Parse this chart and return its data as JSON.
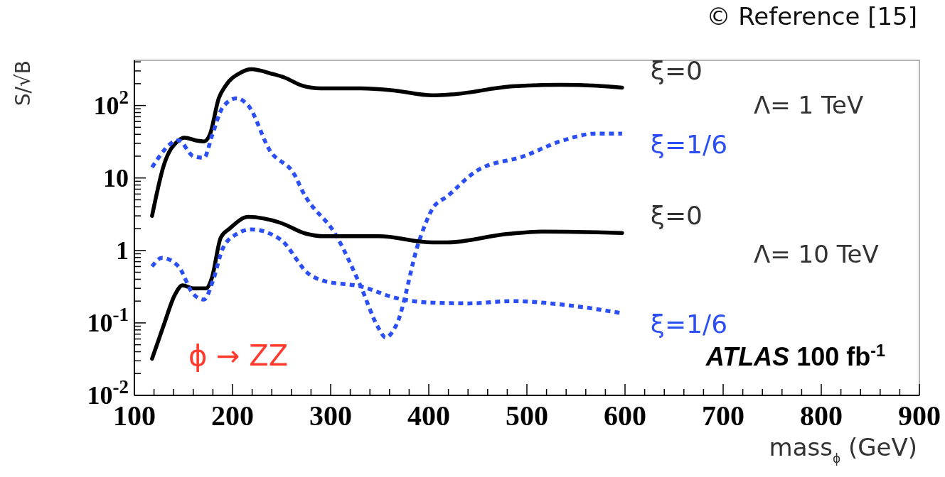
{
  "chart_data": {
    "type": "line",
    "xlabel": "mass$_{ϕ}$ (GeV)",
    "ylabel": "S/√B",
    "log": "y",
    "grid": false,
    "legend": false,
    "marker": "none",
    "xlim": [
      100,
      900
    ],
    "ylim": [
      0.01,
      420
    ],
    "xticks": [
      100,
      {
        "value": 120,
        "label": null
      },
      {
        "value": 140,
        "label": null
      },
      {
        "value": 160,
        "label": null
      },
      {
        "value": 180,
        "label": null
      },
      200,
      {
        "value": 220,
        "label": null
      },
      {
        "value": 240,
        "label": null
      },
      {
        "value": 260,
        "label": null
      },
      {
        "value": 280,
        "label": null
      },
      300,
      {
        "value": 320,
        "label": null
      },
      {
        "value": 340,
        "label": null
      },
      {
        "value": 360,
        "label": null
      },
      {
        "value": 380,
        "label": null
      },
      400,
      {
        "value": 420,
        "label": null
      },
      {
        "value": 440,
        "label": null
      },
      {
        "value": 460,
        "label": null
      },
      {
        "value": 480,
        "label": null
      },
      500,
      {
        "value": 520,
        "label": null
      },
      {
        "value": 540,
        "label": null
      },
      {
        "value": 560,
        "label": null
      },
      {
        "value": 580,
        "label": null
      },
      600,
      {
        "value": 620,
        "label": null
      },
      {
        "value": 640,
        "label": null
      },
      {
        "value": 660,
        "label": null
      },
      {
        "value": 680,
        "label": null
      },
      700,
      {
        "value": 720,
        "label": null
      },
      {
        "value": 740,
        "label": null
      },
      {
        "value": 760,
        "label": null
      },
      {
        "value": 780,
        "label": null
      },
      800,
      {
        "value": 820,
        "label": null
      },
      {
        "value": 840,
        "label": null
      },
      {
        "value": 860,
        "label": null
      },
      {
        "value": 880,
        "label": null
      },
      900
    ],
    "yticks": [
      {
        "value": 0.01,
        "label": "10$^{-2}$"
      },
      {
        "value": 0.02,
        "label": null
      },
      {
        "value": 0.03,
        "label": null
      },
      {
        "value": 0.04,
        "label": null
      },
      {
        "value": 0.05,
        "label": null
      },
      {
        "value": 0.06,
        "label": null
      },
      {
        "value": 0.07,
        "label": null
      },
      {
        "value": 0.08,
        "label": null
      },
      {
        "value": 0.09,
        "label": null
      },
      {
        "value": 0.1,
        "label": "10$^{-1}$"
      },
      {
        "value": 0.2,
        "label": null
      },
      {
        "value": 0.3,
        "label": null
      },
      {
        "value": 0.4,
        "label": null
      },
      {
        "value": 0.5,
        "label": null
      },
      {
        "value": 0.6,
        "label": null
      },
      {
        "value": 0.7,
        "label": null
      },
      {
        "value": 0.8,
        "label": null
      },
      {
        "value": 0.9,
        "label": null
      },
      1,
      {
        "value": 2,
        "label": null
      },
      {
        "value": 3,
        "label": null
      },
      {
        "value": 4,
        "label": null
      },
      {
        "value": 5,
        "label": null
      },
      {
        "value": 6,
        "label": null
      },
      {
        "value": 7,
        "label": null
      },
      {
        "value": 8,
        "label": null
      },
      {
        "value": 9,
        "label": null
      },
      10,
      {
        "value": 20,
        "label": null
      },
      {
        "value": 30,
        "label": null
      },
      {
        "value": 40,
        "label": null
      },
      {
        "value": 50,
        "label": null
      },
      {
        "value": 60,
        "label": null
      },
      {
        "value": 70,
        "label": null
      },
      {
        "value": 80,
        "label": null
      },
      {
        "value": 90,
        "label": null
      },
      {
        "value": 100,
        "label": "10$^{2}$"
      },
      {
        "value": 200,
        "label": null
      },
      {
        "value": 300,
        "label": null
      },
      {
        "value": 400,
        "label": null
      }
    ],
    "series": [
      {
        "name": "ξ=0",
        "color": "#000000",
        "line_style": "solid",
        "x": [
          118,
          130,
          145,
          151,
          164,
          171,
          177,
          186,
          193,
          208,
          219,
          241,
          253,
          271,
          290,
          330,
          363,
          404,
          423,
          486,
          534,
          571,
          597
        ],
        "values": [
          3.0,
          15,
          33,
          36,
          32.6,
          32,
          40,
          126,
          188,
          282,
          316,
          272,
          243,
          188,
          172,
          172,
          162,
          138,
          142,
          184,
          193,
          188,
          176
        ]
      },
      {
        "name": "ξ=1/6",
        "color": "#2b4ff5",
        "line_style": "dotted",
        "x": [
          118,
          145,
          160,
          171,
          179,
          190,
          204,
          216,
          238,
          264,
          271,
          306,
          330,
          349,
          356,
          367,
          390,
          404,
          419,
          449,
          497,
          534,
          571,
          597
        ],
        "values": [
          14,
          33,
          20,
          19,
          38,
          94,
          126,
          100,
          24,
          10.6,
          6.7,
          1.58,
          0.335,
          0.084,
          0.063,
          0.094,
          1.33,
          3.8,
          5.6,
          12.6,
          20,
          32,
          41,
          41
        ]
      },
      {
        "name": "ξ=0",
        "color": "#000000",
        "line_style": "solid",
        "x": [
          118,
          130,
          141,
          149,
          160,
          173,
          179,
          188,
          197,
          216,
          249,
          275,
          293,
          349,
          404,
          419,
          479,
          516,
          597
        ],
        "values": [
          0.032,
          0.094,
          0.24,
          0.33,
          0.3,
          0.3,
          0.42,
          1.5,
          2.0,
          2.9,
          2.4,
          1.7,
          1.57,
          1.57,
          1.29,
          1.29,
          1.68,
          1.82,
          1.74
        ]
      },
      {
        "name": "ξ=1/6",
        "color": "#2b4ff5",
        "line_style": "dotted",
        "x": [
          118,
          128,
          145,
          160,
          171,
          180,
          190,
          204,
          219,
          249,
          278,
          293,
          330,
          367,
          404,
          441,
          486,
          534,
          597
        ],
        "values": [
          0.6,
          0.79,
          0.6,
          0.25,
          0.21,
          0.38,
          1.06,
          1.68,
          1.95,
          1.41,
          0.47,
          0.38,
          0.32,
          0.22,
          0.19,
          0.186,
          0.2,
          0.18,
          0.136
        ]
      }
    ],
    "annotations": [
      "Λ= 1 TeV",
      "Λ= 10 TeV",
      "ϕ → ZZ",
      "ATLAS 100 fb$^{-1}$",
      "© Reference [15]"
    ]
  }
}
